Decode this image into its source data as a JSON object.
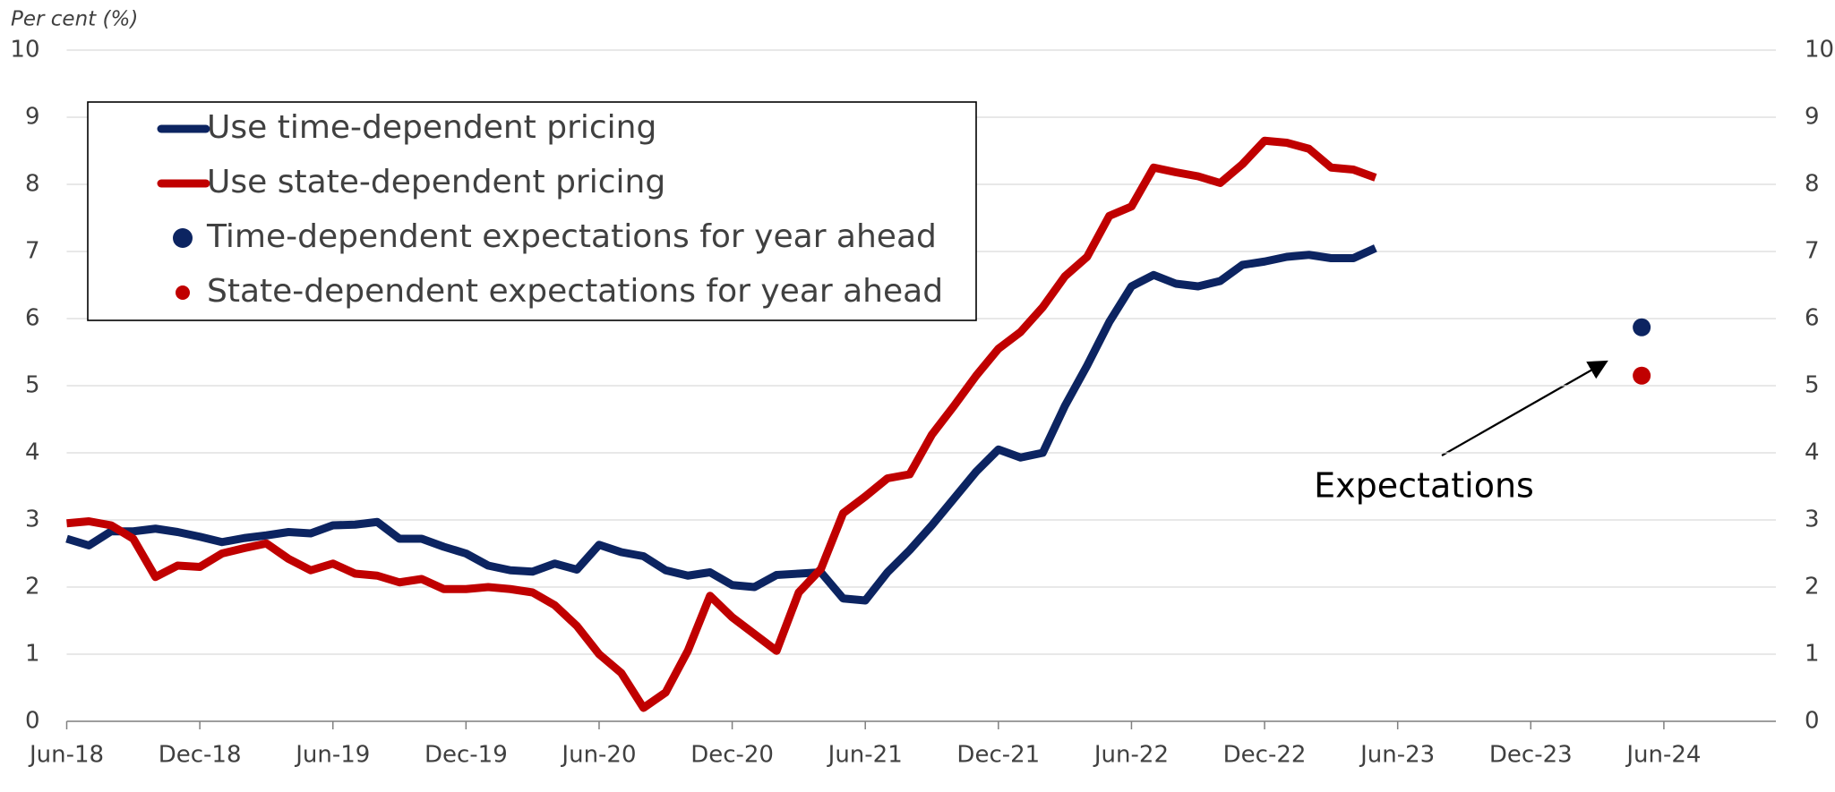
{
  "chart_data": {
    "type": "line",
    "y_axis_label": "Per cent (%)",
    "annotation": "Expectations",
    "xlim": [
      "2018-06",
      "2024-11"
    ],
    "xticks": [
      {
        "value": "2018-06",
        "label": "Jun-18"
      },
      {
        "value": "2018-12",
        "label": "Dec-18"
      },
      {
        "value": "2019-06",
        "label": "Jun-19"
      },
      {
        "value": "2019-12",
        "label": "Dec-19"
      },
      {
        "value": "2020-06",
        "label": "Jun-20"
      },
      {
        "value": "2020-12",
        "label": "Dec-20"
      },
      {
        "value": "2021-06",
        "label": "Jun-21"
      },
      {
        "value": "2021-12",
        "label": "Dec-21"
      },
      {
        "value": "2022-06",
        "label": "Jun-22"
      },
      {
        "value": "2022-12",
        "label": "Dec-22"
      },
      {
        "value": "2023-06",
        "label": "Jun-23"
      },
      {
        "value": "2023-12",
        "label": "Dec-23"
      },
      {
        "value": "2024-06",
        "label": "Jun-24"
      }
    ],
    "ylim": [
      0,
      10
    ],
    "yticks": [
      0,
      1,
      2,
      3,
      4,
      5,
      6,
      7,
      8,
      9,
      10
    ],
    "y2lim": [
      0,
      10
    ],
    "y2ticks": [
      0,
      1,
      2,
      3,
      4,
      5,
      6,
      7,
      8,
      9,
      10
    ],
    "grid": true,
    "legend": "upper left",
    "x": [
      "2018-06",
      "2018-07",
      "2018-08",
      "2018-09",
      "2018-10",
      "2018-11",
      "2018-12",
      "2019-01",
      "2019-02",
      "2019-03",
      "2019-04",
      "2019-05",
      "2019-06",
      "2019-07",
      "2019-08",
      "2019-09",
      "2019-10",
      "2019-11",
      "2019-12",
      "2020-01",
      "2020-02",
      "2020-03",
      "2020-04",
      "2020-05",
      "2020-06",
      "2020-07",
      "2020-08",
      "2020-09",
      "2020-10",
      "2020-11",
      "2020-12",
      "2021-01",
      "2021-02",
      "2021-03",
      "2021-04",
      "2021-05",
      "2021-06",
      "2021-07",
      "2021-08",
      "2021-09",
      "2021-10",
      "2021-11",
      "2021-12",
      "2022-01",
      "2022-02",
      "2022-03",
      "2022-04",
      "2022-05",
      "2022-06",
      "2022-07",
      "2022-08",
      "2022-09",
      "2022-10",
      "2022-11",
      "2022-12",
      "2023-01",
      "2023-02",
      "2023-03",
      "2023-04",
      "2023-05"
    ],
    "series": [
      {
        "name": "Use time-dependent pricing",
        "color": "#0c2461",
        "marker": "line",
        "values": [
          2.72,
          2.62,
          2.83,
          2.83,
          2.87,
          2.82,
          2.75,
          2.67,
          2.73,
          2.77,
          2.82,
          2.8,
          2.92,
          2.93,
          2.97,
          2.72,
          2.72,
          2.6,
          2.5,
          2.32,
          2.25,
          2.23,
          2.35,
          2.26,
          2.63,
          2.52,
          2.46,
          2.25,
          2.17,
          2.22,
          2.03,
          2.0,
          2.18,
          2.2,
          2.22,
          1.83,
          1.8,
          2.22,
          2.55,
          2.92,
          3.32,
          3.72,
          4.05,
          3.93,
          4.0,
          4.7,
          5.3,
          5.95,
          6.48,
          6.65,
          6.52,
          6.48,
          6.56,
          6.8,
          6.85,
          6.92,
          6.95,
          6.9,
          6.9,
          7.05
        ]
      },
      {
        "name": "Use state-dependent pricing",
        "color": "#c00000",
        "marker": "line",
        "values": [
          2.95,
          2.98,
          2.92,
          2.72,
          2.15,
          2.32,
          2.3,
          2.5,
          2.58,
          2.65,
          2.42,
          2.25,
          2.35,
          2.2,
          2.17,
          2.07,
          2.12,
          1.97,
          1.97,
          2.0,
          1.97,
          1.92,
          1.73,
          1.42,
          1.0,
          0.72,
          0.2,
          0.43,
          1.05,
          1.87,
          1.55,
          1.3,
          1.05,
          1.92,
          2.27,
          3.1,
          3.35,
          3.62,
          3.68,
          4.27,
          4.7,
          5.15,
          5.55,
          5.8,
          6.17,
          6.63,
          6.92,
          7.53,
          7.67,
          8.25,
          8.18,
          8.12,
          8.02,
          8.3,
          8.65,
          8.62,
          8.53,
          8.25,
          8.22,
          8.1
        ]
      },
      {
        "name": "Time-dependent expectations for year ahead",
        "color": "#0c2461",
        "marker": "dot",
        "x": [
          "2024-05"
        ],
        "values": [
          5.87
        ]
      },
      {
        "name": "State-dependent expectations for year ahead",
        "color": "#c00000",
        "marker": "dot",
        "x": [
          "2024-05"
        ],
        "values": [
          5.15
        ]
      }
    ]
  }
}
